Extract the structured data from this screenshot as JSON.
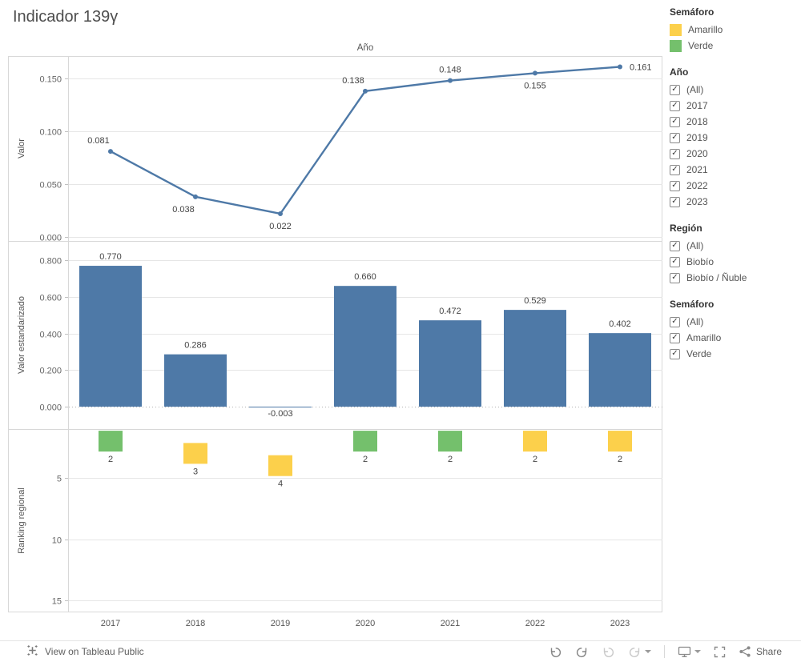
{
  "title": "Indicador 139γ",
  "top_axis_title": "Año",
  "colors": {
    "blue": "#4e79a7",
    "amarillo": "#fcd04b",
    "verde": "#74c06c",
    "grid": "#e6e6e6",
    "border": "#d8d8d8"
  },
  "legend": {
    "title": "Semáforo",
    "items": [
      {
        "label": "Amarillo",
        "color_key": "amarillo"
      },
      {
        "label": "Verde",
        "color_key": "verde"
      }
    ]
  },
  "filters": [
    {
      "title": "Año",
      "options": [
        "(All)",
        "2017",
        "2018",
        "2019",
        "2020",
        "2021",
        "2022",
        "2023"
      ],
      "checked": true
    },
    {
      "title": "Región",
      "options": [
        "(All)",
        "Biobío",
        "Biobío / Ñuble"
      ],
      "checked": true
    },
    {
      "title": "Semáforo",
      "options": [
        "(All)",
        "Amarillo",
        "Verde"
      ],
      "checked": true
    }
  ],
  "chart_data": [
    {
      "type": "line",
      "ylabel": "Valor",
      "x_axis_title": "Año",
      "categories": [
        "2017",
        "2018",
        "2019",
        "2020",
        "2021",
        "2022",
        "2023"
      ],
      "values": [
        0.081,
        0.038,
        0.022,
        0.138,
        0.148,
        0.155,
        0.161
      ],
      "yticks": [
        0.15,
        0.1,
        0.05,
        0.0
      ],
      "ylim": [
        0,
        0.17
      ],
      "label_positions": [
        "above-left",
        "below-left",
        "below",
        "above-left",
        "above",
        "below",
        "right"
      ]
    },
    {
      "type": "bar",
      "ylabel": "Valor estandarizado",
      "categories": [
        "2017",
        "2018",
        "2019",
        "2020",
        "2021",
        "2022",
        "2023"
      ],
      "values": [
        0.77,
        0.286,
        -0.003,
        0.66,
        0.472,
        0.529,
        0.402
      ],
      "yticks": [
        0.8,
        0.6,
        0.4,
        0.2,
        0.0
      ],
      "ylim": [
        -0.05,
        0.87
      ]
    },
    {
      "type": "scatter",
      "ylabel": "Ranking regional",
      "categories": [
        "2017",
        "2018",
        "2019",
        "2020",
        "2021",
        "2022",
        "2023"
      ],
      "values": [
        2,
        3,
        4,
        2,
        2,
        2,
        2
      ],
      "point_colors": [
        "verde",
        "amarillo",
        "amarillo",
        "verde",
        "verde",
        "amarillo",
        "amarillo"
      ],
      "yticks": [
        5,
        10,
        15
      ],
      "y_inverted": true
    }
  ],
  "footer": {
    "view_label": "View on Tableau Public",
    "share_label": "Share"
  }
}
